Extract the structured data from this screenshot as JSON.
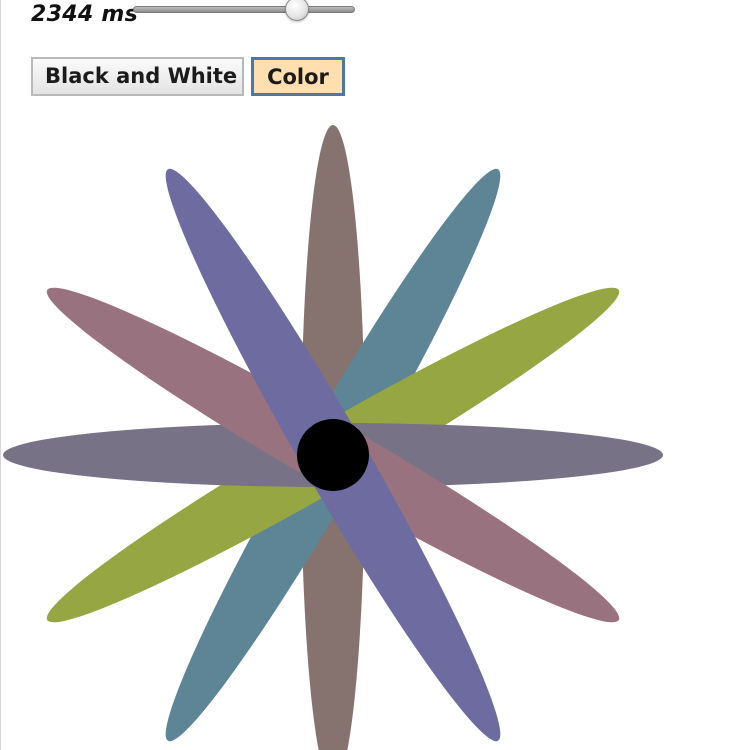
{
  "controls": {
    "duration_label": "2344 ms",
    "duration_ms": 2344,
    "slider_fraction": 0.74,
    "buttons": {
      "black_and_white": "Black and White",
      "color": "Color",
      "selected": "color"
    }
  },
  "flower": {
    "petals": [
      {
        "angle_deg": 0,
        "color": "#86736F"
      },
      {
        "angle_deg": 30,
        "color": "#5D8595"
      },
      {
        "angle_deg": 60,
        "color": "#96A643"
      },
      {
        "angle_deg": 90,
        "color": "#787286"
      },
      {
        "angle_deg": 120,
        "color": "#98727F"
      },
      {
        "angle_deg": 150,
        "color": "#6D6BA0"
      }
    ],
    "center_color": "#000000",
    "selected_button_bg": "#FFDFB0",
    "selected_button_border": "#4D78A6"
  }
}
